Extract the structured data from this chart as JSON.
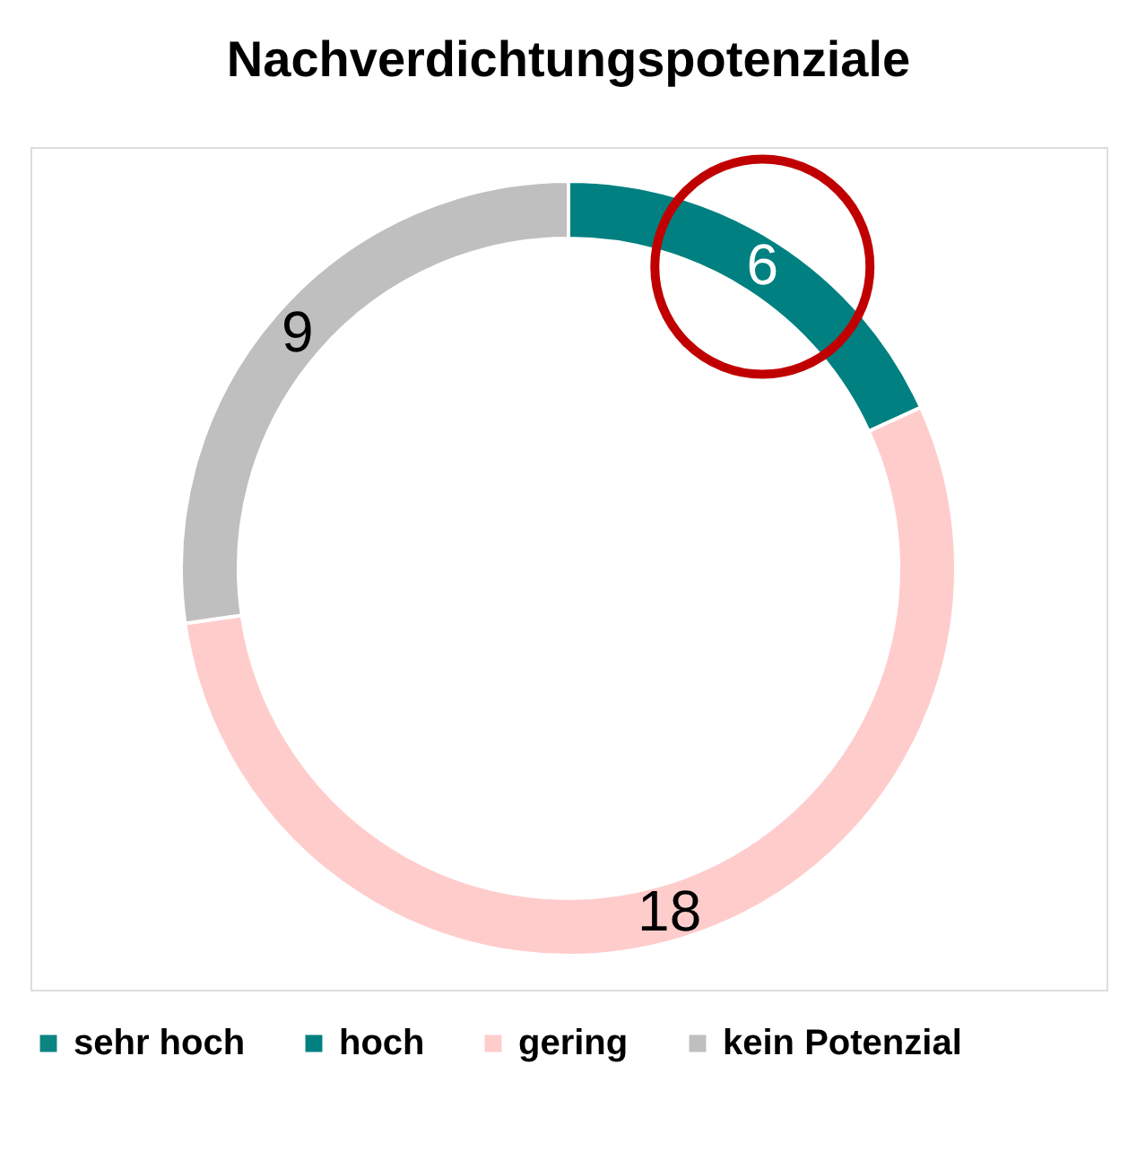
{
  "chart_data": {
    "type": "donut",
    "title": "Nachverdichtungspotenziale",
    "categories": [
      "sehr hoch",
      "hoch",
      "gering",
      "kein Potenzial"
    ],
    "values": [
      0,
      6,
      18,
      9
    ],
    "colors": [
      "#0b8582",
      "#008080",
      "#ffcccc",
      "#bfbfbf"
    ],
    "value_labels": [
      null,
      "6",
      "18",
      "9"
    ],
    "legend": "bottom"
  }
}
